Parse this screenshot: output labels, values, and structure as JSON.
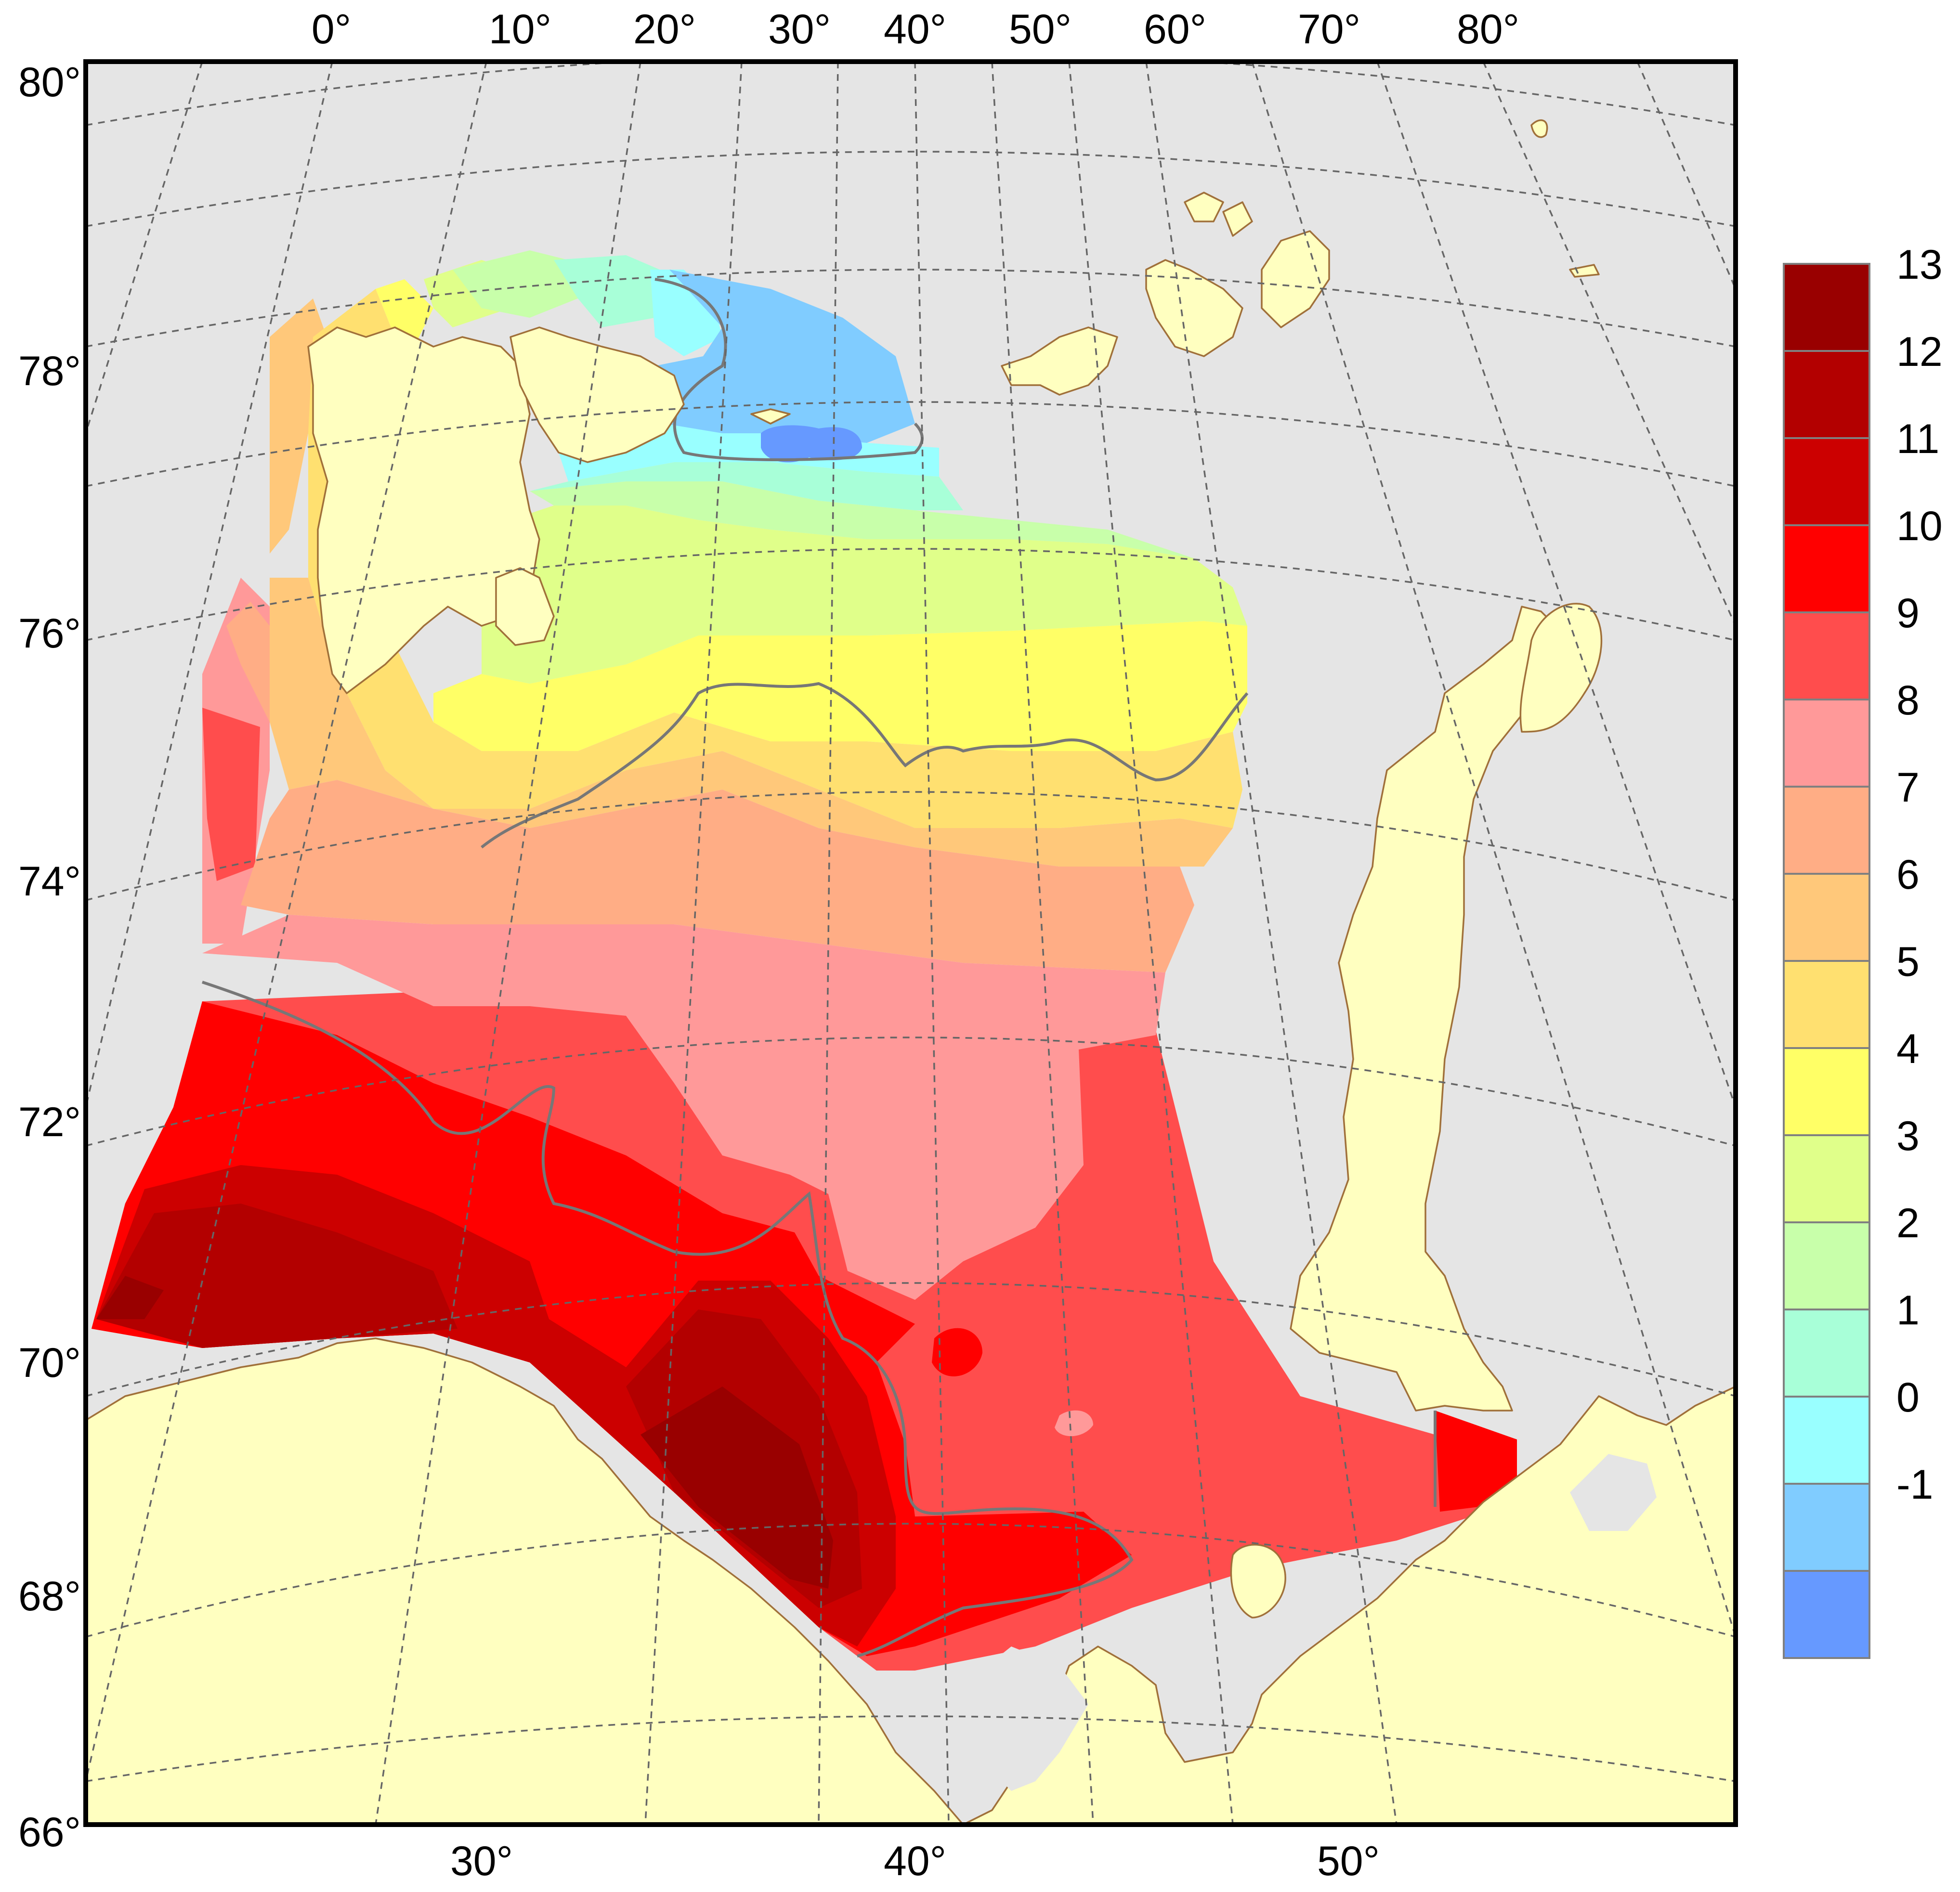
{
  "map": {
    "top_longitude_labels": [
      "0°",
      "10°",
      "20°",
      "30°",
      "40°",
      "50°",
      "60°",
      "70°",
      "80°"
    ],
    "bottom_longitude_labels": [
      "30°",
      "40°",
      "50°"
    ],
    "latitude_labels": [
      "80°",
      "78°",
      "76°",
      "74°",
      "72°",
      "70°",
      "68°",
      "66°"
    ],
    "colors": {
      "ocean": "#e5e5e5",
      "land": "#ffffc0",
      "coastline": "#a0703a",
      "graticule": "#666666",
      "frame": "#000000"
    }
  },
  "legend": {
    "labels": [
      "13",
      "12",
      "11",
      "10",
      "9",
      "8",
      "7",
      "6",
      "5",
      "4",
      "3",
      "2",
      "1",
      "0",
      "-1"
    ],
    "colors": [
      "#990000",
      "#b30000",
      "#cc0000",
      "#ff0000",
      "#ff4d4d",
      "#ff9999",
      "#ffad85",
      "#ffc87a",
      "#ffe070",
      "#ffff66",
      "#e0ff8a",
      "#c8ffaa",
      "#a8ffd8",
      "#99ffff",
      "#80ccff",
      "#6699ff"
    ]
  }
}
